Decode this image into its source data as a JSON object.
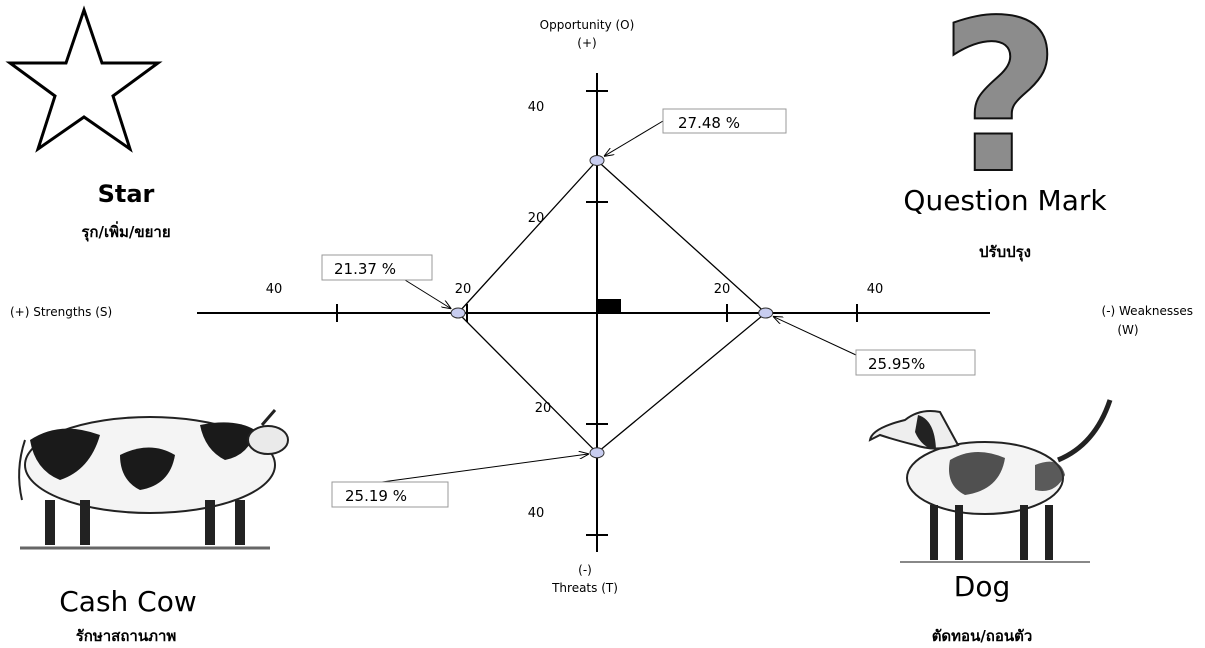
{
  "axes": {
    "top_label": "Opportunity (O)",
    "top_sign": "(+)",
    "bottom_sign": "(-)",
    "bottom_label": "Threats (T)",
    "left_label": "(+) Strengths (S)",
    "right_label_line1": "(-) Weaknesses",
    "right_label_line2": "(W)"
  },
  "ticks": {
    "up_40": "40",
    "up_20": "20",
    "left_40": "40",
    "left_20": "20",
    "right_20": "20",
    "right_40": "40",
    "down_20": "20",
    "down_40": "40"
  },
  "chart_data": {
    "type": "scatter",
    "points": [
      {
        "axis": "Opportunity",
        "value": 27.48,
        "label": "27.48 %"
      },
      {
        "axis": "Strengths",
        "value": 21.37,
        "label": "21.37 %"
      },
      {
        "axis": "Weaknesses",
        "value": 25.95,
        "label": "25.95%"
      },
      {
        "axis": "Threats",
        "value": 25.19,
        "label": "25.19 %"
      }
    ],
    "axis_range": [
      0,
      40
    ]
  },
  "quadrants": {
    "star": {
      "title": "Star",
      "subtitle": "รุก/เพิ่ม/ขยาย",
      "icon": "star-icon"
    },
    "question": {
      "title": "Question Mark",
      "subtitle": "ปรับปรุง",
      "icon": "question-mark-icon"
    },
    "cow": {
      "title": "Cash Cow",
      "subtitle": "รักษาสถานภาพ",
      "icon": "cow-icon"
    },
    "dog": {
      "title": "Dog",
      "subtitle": "ตัดทอน/ถอนตัว",
      "icon": "dog-icon"
    }
  },
  "colors": {
    "point_fill": "#c8cdf0",
    "marker": "#000000",
    "line": "#000000"
  }
}
